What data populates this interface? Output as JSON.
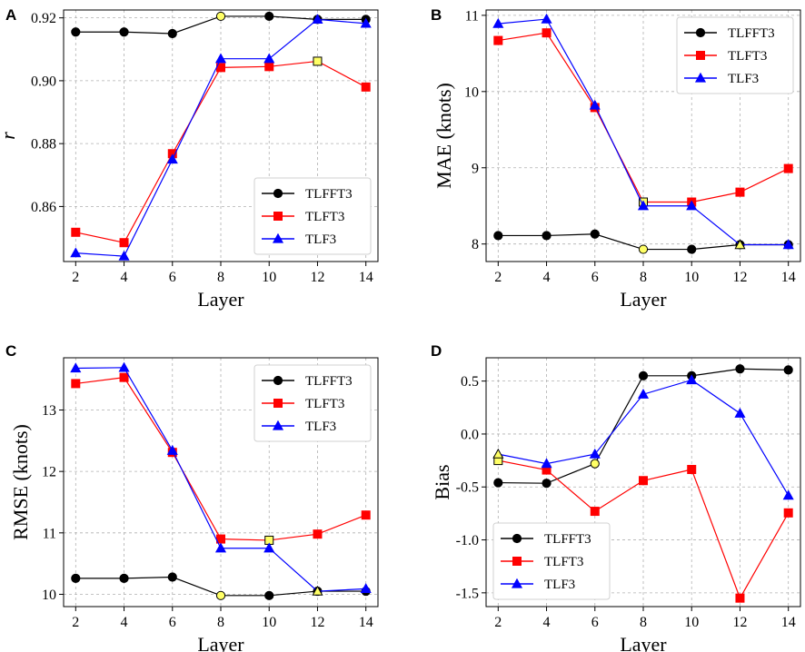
{
  "figure": {
    "colors": {
      "TLFFT3": "#000000",
      "TLFT3": "#ff0000",
      "TLF3": "#0000ff",
      "highlight": "#ffff66"
    }
  },
  "chart_data": [
    {
      "type": "line",
      "panel_letter": "A",
      "xlabel": "Layer",
      "ylabel": "r",
      "x": [
        2,
        4,
        6,
        8,
        10,
        12,
        14
      ],
      "xlim": [
        1.5,
        14.5
      ],
      "ylim": [
        0.8425,
        0.9225
      ],
      "yticks": [
        0.86,
        0.88,
        0.9,
        0.92
      ],
      "ytick_labels": [
        "0.86",
        "0.88",
        "0.90",
        "0.92"
      ],
      "xticks": [
        2,
        4,
        6,
        8,
        10,
        12,
        14
      ],
      "xtick_labels": [
        "2",
        "4",
        "6",
        "8",
        "10",
        "12",
        "14"
      ],
      "legend_position": "lower-right",
      "series": [
        {
          "name": "TLFFT3",
          "marker": "circle",
          "values": [
            0.9155,
            0.9155,
            0.915,
            0.9205,
            0.9205,
            0.9195,
            0.9195
          ],
          "highlight_index": 3
        },
        {
          "name": "TLFT3",
          "marker": "square",
          "values": [
            0.8518,
            0.8485,
            0.8768,
            0.9042,
            0.9045,
            0.9062,
            0.898
          ],
          "highlight_index": 5
        },
        {
          "name": "TLF3",
          "marker": "triangle",
          "values": [
            0.8452,
            0.8442,
            0.875,
            0.907,
            0.907,
            0.9195,
            0.9182
          ],
          "highlight_index": -1
        }
      ]
    },
    {
      "type": "line",
      "panel_letter": "B",
      "xlabel": "Layer",
      "ylabel": "MAE (knots)",
      "x": [
        2,
        4,
        6,
        8,
        10,
        12,
        14
      ],
      "xlim": [
        1.5,
        14.5
      ],
      "ylim": [
        7.77,
        11.07
      ],
      "yticks": [
        8,
        9,
        10,
        11
      ],
      "ytick_labels": [
        "8",
        "9",
        "10",
        "11"
      ],
      "xticks": [
        2,
        4,
        6,
        8,
        10,
        12,
        14
      ],
      "xtick_labels": [
        "2",
        "4",
        "6",
        "8",
        "10",
        "12",
        "14"
      ],
      "legend_position": "upper-right",
      "series": [
        {
          "name": "TLFFT3",
          "marker": "circle",
          "values": [
            8.11,
            8.11,
            8.13,
            7.93,
            7.93,
            7.99,
            7.99
          ],
          "highlight_index": 3
        },
        {
          "name": "TLFT3",
          "marker": "square",
          "values": [
            10.67,
            10.77,
            9.79,
            8.55,
            8.55,
            8.68,
            8.99
          ],
          "highlight_index": 3
        },
        {
          "name": "TLF3",
          "marker": "triangle",
          "values": [
            10.89,
            10.95,
            9.82,
            8.5,
            8.5,
            7.99,
            7.99
          ],
          "highlight_index": 5
        }
      ]
    },
    {
      "type": "line",
      "panel_letter": "C",
      "xlabel": "Layer",
      "ylabel": "RMSE (knots)",
      "x": [
        2,
        4,
        6,
        8,
        10,
        12,
        14
      ],
      "xlim": [
        1.5,
        14.5
      ],
      "ylim": [
        9.8,
        13.85
      ],
      "yticks": [
        10,
        11,
        12,
        13
      ],
      "ytick_labels": [
        "10",
        "11",
        "12",
        "13"
      ],
      "xticks": [
        2,
        4,
        6,
        8,
        10,
        12,
        14
      ],
      "xtick_labels": [
        "2",
        "4",
        "6",
        "8",
        "10",
        "12",
        "14"
      ],
      "legend_position": "upper-right",
      "series": [
        {
          "name": "TLFFT3",
          "marker": "circle",
          "values": [
            10.26,
            10.26,
            10.28,
            9.98,
            9.98,
            10.05,
            10.05
          ],
          "highlight_index": 3
        },
        {
          "name": "TLFT3",
          "marker": "square",
          "values": [
            13.43,
            13.53,
            12.31,
            10.9,
            10.88,
            10.98,
            11.29
          ],
          "highlight_index": 4
        },
        {
          "name": "TLF3",
          "marker": "triangle",
          "values": [
            13.68,
            13.69,
            12.34,
            10.75,
            10.75,
            10.05,
            10.09
          ],
          "highlight_index": 5
        }
      ]
    },
    {
      "type": "line",
      "panel_letter": "D",
      "xlabel": "Layer",
      "ylabel": "Bias",
      "x": [
        2,
        4,
        6,
        8,
        10,
        12,
        14
      ],
      "xlim": [
        1.5,
        14.5
      ],
      "ylim": [
        -1.63,
        0.72
      ],
      "yticks": [
        -1.5,
        -1.0,
        -0.5,
        0.0,
        0.5
      ],
      "ytick_labels": [
        "-1.5",
        "-1.0",
        "-0.5",
        "0.0",
        "0.5"
      ],
      "xticks": [
        2,
        4,
        6,
        8,
        10,
        12,
        14
      ],
      "xtick_labels": [
        "2",
        "4",
        "6",
        "8",
        "10",
        "12",
        "14"
      ],
      "legend_position": "lower-left",
      "series": [
        {
          "name": "TLFFT3",
          "marker": "circle",
          "values": [
            -0.46,
            -0.465,
            -0.28,
            0.55,
            0.55,
            0.615,
            0.605
          ],
          "highlight_index": 2
        },
        {
          "name": "TLFT3",
          "marker": "square",
          "values": [
            -0.25,
            -0.34,
            -0.73,
            -0.44,
            -0.335,
            -1.55,
            -0.745
          ],
          "highlight_index": 0
        },
        {
          "name": "TLF3",
          "marker": "triangle",
          "values": [
            -0.19,
            -0.28,
            -0.19,
            0.375,
            0.51,
            0.195,
            -0.58
          ],
          "highlight_index": 0
        }
      ]
    }
  ]
}
